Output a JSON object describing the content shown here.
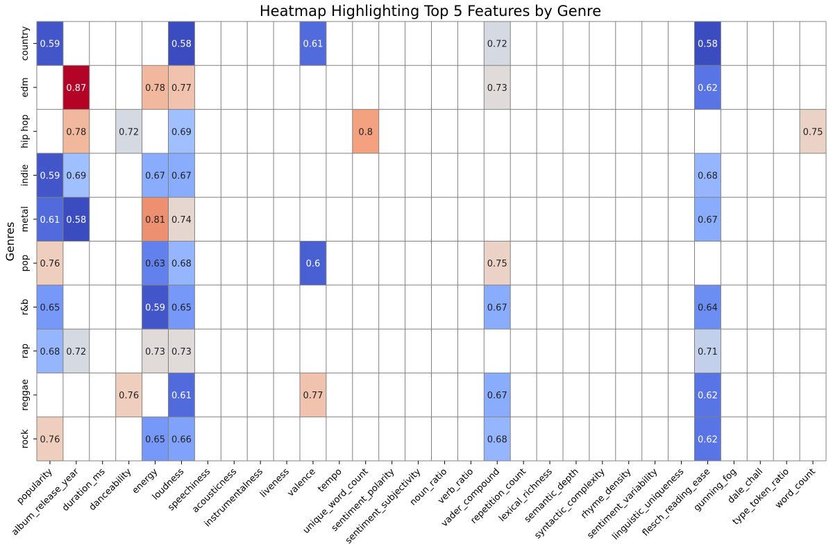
{
  "chart_data": {
    "type": "heatmap",
    "title": "Heatmap Highlighting Top 5 Features by Genre",
    "xlabel": "",
    "ylabel": "Genres",
    "colormap": "coolwarm",
    "color_range": [
      0.58,
      0.87
    ],
    "colorbar": false,
    "grid_color": "#808080",
    "empty_cell_color": "#ffffff",
    "columns": [
      "popularity",
      "album_release_year",
      "duration_ms",
      "danceability",
      "energy",
      "loudness",
      "speechiness",
      "acousticness",
      "instrumentalness",
      "liveness",
      "valence",
      "tempo",
      "unique_word_count",
      "sentiment_polarity",
      "sentiment_subjectivity",
      "noun_ratio",
      "verb_ratio",
      "vader_compound",
      "repetition_count",
      "lexical_richness",
      "semantic_depth",
      "syntactic_complexity",
      "rhyme_density",
      "sentiment_variability",
      "linguistic_uniqueness",
      "flesch_reading_ease",
      "gunning_fog",
      "dale_chall",
      "type_token_ratio",
      "word_count"
    ],
    "rows": [
      "country",
      "edm",
      "hip hop",
      "indie",
      "metal",
      "pop",
      "r&b",
      "rap",
      "reggae",
      "rock"
    ],
    "cells": [
      {
        "row": "country",
        "col": "popularity",
        "value": 0.59,
        "label": "0.59"
      },
      {
        "row": "country",
        "col": "loudness",
        "value": 0.58,
        "label": "0.58"
      },
      {
        "row": "country",
        "col": "valence",
        "value": 0.61,
        "label": "0.61"
      },
      {
        "row": "country",
        "col": "vader_compound",
        "value": 0.72,
        "label": "0.72"
      },
      {
        "row": "country",
        "col": "flesch_reading_ease",
        "value": 0.58,
        "label": "0.58"
      },
      {
        "row": "edm",
        "col": "album_release_year",
        "value": 0.87,
        "label": "0.87"
      },
      {
        "row": "edm",
        "col": "energy",
        "value": 0.78,
        "label": "0.78"
      },
      {
        "row": "edm",
        "col": "loudness",
        "value": 0.77,
        "label": "0.77"
      },
      {
        "row": "edm",
        "col": "vader_compound",
        "value": 0.73,
        "label": "0.73"
      },
      {
        "row": "edm",
        "col": "flesch_reading_ease",
        "value": 0.62,
        "label": "0.62"
      },
      {
        "row": "hip hop",
        "col": "album_release_year",
        "value": 0.78,
        "label": "0.78"
      },
      {
        "row": "hip hop",
        "col": "danceability",
        "value": 0.72,
        "label": "0.72"
      },
      {
        "row": "hip hop",
        "col": "loudness",
        "value": 0.69,
        "label": "0.69"
      },
      {
        "row": "hip hop",
        "col": "unique_word_count",
        "value": 0.8,
        "label": "0.8"
      },
      {
        "row": "hip hop",
        "col": "word_count",
        "value": 0.75,
        "label": "0.75"
      },
      {
        "row": "indie",
        "col": "popularity",
        "value": 0.59,
        "label": "0.59"
      },
      {
        "row": "indie",
        "col": "album_release_year",
        "value": 0.69,
        "label": "0.69"
      },
      {
        "row": "indie",
        "col": "energy",
        "value": 0.67,
        "label": "0.67"
      },
      {
        "row": "indie",
        "col": "loudness",
        "value": 0.67,
        "label": "0.67"
      },
      {
        "row": "indie",
        "col": "flesch_reading_ease",
        "value": 0.68,
        "label": "0.68"
      },
      {
        "row": "metal",
        "col": "popularity",
        "value": 0.61,
        "label": "0.61"
      },
      {
        "row": "metal",
        "col": "album_release_year",
        "value": 0.58,
        "label": "0.58"
      },
      {
        "row": "metal",
        "col": "energy",
        "value": 0.81,
        "label": "0.81"
      },
      {
        "row": "metal",
        "col": "loudness",
        "value": 0.74,
        "label": "0.74"
      },
      {
        "row": "metal",
        "col": "flesch_reading_ease",
        "value": 0.67,
        "label": "0.67"
      },
      {
        "row": "pop",
        "col": "popularity",
        "value": 0.76,
        "label": "0.76"
      },
      {
        "row": "pop",
        "col": "energy",
        "value": 0.63,
        "label": "0.63"
      },
      {
        "row": "pop",
        "col": "loudness",
        "value": 0.68,
        "label": "0.68"
      },
      {
        "row": "pop",
        "col": "valence",
        "value": 0.6,
        "label": "0.6"
      },
      {
        "row": "pop",
        "col": "vader_compound",
        "value": 0.75,
        "label": "0.75"
      },
      {
        "row": "r&b",
        "col": "popularity",
        "value": 0.65,
        "label": "0.65"
      },
      {
        "row": "r&b",
        "col": "energy",
        "value": 0.59,
        "label": "0.59"
      },
      {
        "row": "r&b",
        "col": "loudness",
        "value": 0.65,
        "label": "0.65"
      },
      {
        "row": "r&b",
        "col": "vader_compound",
        "value": 0.67,
        "label": "0.67"
      },
      {
        "row": "r&b",
        "col": "flesch_reading_ease",
        "value": 0.64,
        "label": "0.64"
      },
      {
        "row": "rap",
        "col": "popularity",
        "value": 0.68,
        "label": "0.68"
      },
      {
        "row": "rap",
        "col": "album_release_year",
        "value": 0.72,
        "label": "0.72"
      },
      {
        "row": "rap",
        "col": "energy",
        "value": 0.73,
        "label": "0.73"
      },
      {
        "row": "rap",
        "col": "loudness",
        "value": 0.73,
        "label": "0.73"
      },
      {
        "row": "rap",
        "col": "flesch_reading_ease",
        "value": 0.71,
        "label": "0.71"
      },
      {
        "row": "reggae",
        "col": "danceability",
        "value": 0.76,
        "label": "0.76"
      },
      {
        "row": "reggae",
        "col": "loudness",
        "value": 0.61,
        "label": "0.61"
      },
      {
        "row": "reggae",
        "col": "valence",
        "value": 0.77,
        "label": "0.77"
      },
      {
        "row": "reggae",
        "col": "vader_compound",
        "value": 0.67,
        "label": "0.67"
      },
      {
        "row": "reggae",
        "col": "flesch_reading_ease",
        "value": 0.62,
        "label": "0.62"
      },
      {
        "row": "rock",
        "col": "popularity",
        "value": 0.76,
        "label": "0.76"
      },
      {
        "row": "rock",
        "col": "energy",
        "value": 0.65,
        "label": "0.65"
      },
      {
        "row": "rock",
        "col": "loudness",
        "value": 0.66,
        "label": "0.66"
      },
      {
        "row": "rock",
        "col": "vader_compound",
        "value": 0.68,
        "label": "0.68"
      },
      {
        "row": "rock",
        "col": "flesch_reading_ease",
        "value": 0.62,
        "label": "0.62"
      }
    ]
  }
}
